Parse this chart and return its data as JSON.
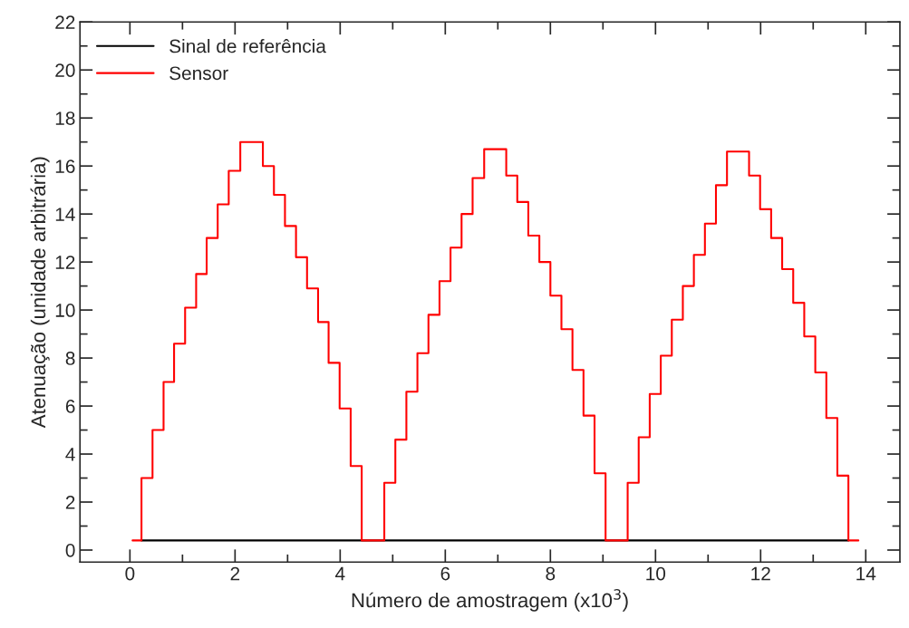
{
  "chart_data": {
    "type": "line",
    "xlabel": "Número de amostragem (x10$^{3}$)",
    "ylabel": "Atenuação (unidade arbitrária)",
    "xlim": [
      -0.95,
      14.65
    ],
    "ylim": [
      -0.5,
      22
    ],
    "xticks": [
      0,
      {
        "value": 1,
        "label": null
      },
      2,
      {
        "value": 3,
        "label": null
      },
      4,
      {
        "value": 5,
        "label": null
      },
      6,
      {
        "value": 7,
        "label": null
      },
      8,
      {
        "value": 9,
        "label": null
      },
      10,
      {
        "value": 11,
        "label": null
      },
      12,
      {
        "value": 13,
        "label": null
      },
      14
    ],
    "yticks": [
      0,
      {
        "value": 1,
        "label": null
      },
      2,
      {
        "value": 3,
        "label": null
      },
      4,
      {
        "value": 5,
        "label": null
      },
      6,
      {
        "value": 7,
        "label": null
      },
      8,
      {
        "value": 9,
        "label": null
      },
      10,
      {
        "value": 11,
        "label": null
      },
      12,
      {
        "value": 13,
        "label": null
      },
      14,
      {
        "value": 15,
        "label": null
      },
      16,
      {
        "value": 17,
        "label": null
      },
      18,
      {
        "value": 19,
        "label": null
      },
      20,
      {
        "value": 21,
        "label": null
      },
      22
    ],
    "legend": "top left",
    "grid": false,
    "series": [
      {
        "name": "Sinal de referência",
        "color": "#000000",
        "x": [
          0.22,
          2,
          4,
          6,
          8,
          10,
          12,
          13.67
        ],
        "values": [
          0.4,
          0.4,
          0.4,
          0.4,
          0.4,
          0.4,
          0.4,
          0.4
        ]
      },
      {
        "name": "Sensor",
        "color": "#ff0000",
        "type": "step",
        "x": [
          0.05,
          0.22,
          0.43,
          0.64,
          0.84,
          1.05,
          1.26,
          1.46,
          1.67,
          1.88,
          2.1,
          2.53,
          2.74,
          2.95,
          3.16,
          3.37,
          3.58,
          3.78,
          3.99,
          4.2,
          4.41,
          4.84,
          5.05,
          5.26,
          5.47,
          5.68,
          5.89,
          6.1,
          6.31,
          6.52,
          6.74,
          7.16,
          7.37,
          7.58,
          7.79,
          8.0,
          8.21,
          8.42,
          8.63,
          8.84,
          9.05,
          9.47,
          9.68,
          9.89,
          10.1,
          10.31,
          10.52,
          10.73,
          10.94,
          11.15,
          11.36,
          11.78,
          11.99,
          12.2,
          12.41,
          12.62,
          12.83,
          13.04,
          13.25,
          13.46,
          13.67,
          13.86
        ],
        "values": [
          0.4,
          3.0,
          5.0,
          7.0,
          8.6,
          10.1,
          11.5,
          13.0,
          14.4,
          15.8,
          17.0,
          16.0,
          14.8,
          13.5,
          12.2,
          10.9,
          9.5,
          7.8,
          5.9,
          3.5,
          0.4,
          2.8,
          4.6,
          6.6,
          8.2,
          9.8,
          11.2,
          12.6,
          14.0,
          15.5,
          16.7,
          15.6,
          14.5,
          13.1,
          12.0,
          10.6,
          9.2,
          7.5,
          5.6,
          3.2,
          0.4,
          2.8,
          4.7,
          6.5,
          8.1,
          9.6,
          11.0,
          12.3,
          13.6,
          15.2,
          16.6,
          15.6,
          14.2,
          13.0,
          11.7,
          10.3,
          8.9,
          7.4,
          5.5,
          3.1,
          0.4,
          0.4
        ]
      }
    ]
  }
}
